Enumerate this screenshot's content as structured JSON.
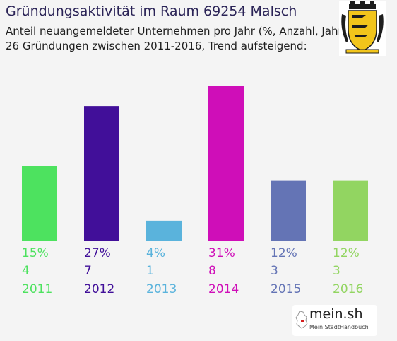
{
  "title": "Gründungsaktivität im Raum 69254 Malsch",
  "subtitle_line1": "Anteil neuangemeldeter Unternehmen pro Jahr (%, Anzahl, Jahr)",
  "subtitle_line2": "26 Gründungen zwischen 2011-2016, Trend aufsteigend:",
  "logo": {
    "name": "mein.sh",
    "tagline": "Mein StadtHandbuch"
  },
  "chart_data": {
    "type": "bar",
    "title": "Gründungsaktivität im Raum 69254 Malsch",
    "categories": [
      "2011",
      "2012",
      "2013",
      "2014",
      "2015",
      "2016"
    ],
    "values": [
      15,
      27,
      4,
      31,
      12,
      12
    ],
    "percent_labels": [
      "15%",
      "27%",
      "4%",
      "31%",
      "12%",
      "12%"
    ],
    "counts": [
      "4",
      "7",
      "1",
      "8",
      "3",
      "3"
    ],
    "colors": [
      "#4de25f",
      "#410f99",
      "#5ab3dc",
      "#cf0eb8",
      "#6474b5",
      "#92d561"
    ],
    "ylim": [
      0,
      31
    ],
    "grid": false,
    "legend": "none"
  }
}
